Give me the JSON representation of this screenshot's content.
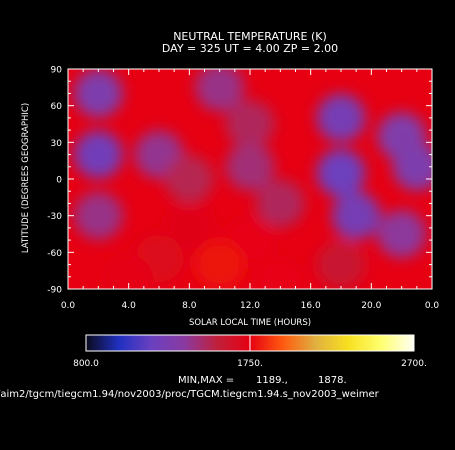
{
  "chart_data": {
    "type": "heatmap",
    "title": "NEUTRAL TEMPERATURE (K)",
    "subtitle": "DAY = 325   UT =   4.00   ZP =    2.00",
    "xlabel": "SOLAR LOCAL TIME (HOURS)",
    "ylabel": "LATITUDE (DEGREES GEOGRAPHIC)",
    "xlim": [
      0.0,
      24.0
    ],
    "ylim": [
      -90,
      90
    ],
    "x_ticks": [
      "0.0",
      "4.0",
      "8.0",
      "12.0",
      "16.0",
      "20.0",
      "0.0"
    ],
    "y_ticks": [
      "-90",
      "-60",
      "-30",
      "0",
      "30",
      "60",
      "90"
    ],
    "colorbar": {
      "min": 800.0,
      "max": 2700.0,
      "labels": [
        "800.0",
        "1750.",
        "2700."
      ],
      "colors": [
        "#0a0a1c",
        "#2030c0",
        "#6a40c0",
        "#8a3aa0",
        "#c0203c",
        "#e60012",
        "#ff5a10",
        "#e0b040",
        "#f8e020",
        "#ffff70",
        "#fffff4"
      ]
    },
    "field_samples": [
      {
        "lt": 2,
        "lat": 70,
        "value": 1300
      },
      {
        "lt": 10,
        "lat": 75,
        "value": 1420
      },
      {
        "lt": 12,
        "lat": 45,
        "value": 1500
      },
      {
        "lt": 18,
        "lat": 50,
        "value": 1250
      },
      {
        "lt": 22,
        "lat": 35,
        "value": 1310
      },
      {
        "lt": 2,
        "lat": 20,
        "value": 1230
      },
      {
        "lt": 6,
        "lat": 20,
        "value": 1400
      },
      {
        "lt": 8,
        "lat": 0,
        "value": 1520
      },
      {
        "lt": 12,
        "lat": 10,
        "value": 1450
      },
      {
        "lt": 18,
        "lat": 5,
        "value": 1200
      },
      {
        "lt": 23,
        "lat": 10,
        "value": 1300
      },
      {
        "lt": 2,
        "lat": -30,
        "value": 1420
      },
      {
        "lt": 8,
        "lat": -40,
        "value": 1720
      },
      {
        "lt": 12,
        "lat": -50,
        "value": 1760
      },
      {
        "lt": 14,
        "lat": -20,
        "value": 1500
      },
      {
        "lt": 19,
        "lat": -30,
        "value": 1250
      },
      {
        "lt": 22,
        "lat": -45,
        "value": 1380
      },
      {
        "lt": 6,
        "lat": -65,
        "value": 1700
      },
      {
        "lt": 10,
        "lat": -70,
        "value": 1800
      },
      {
        "lt": 18,
        "lat": -70,
        "value": 1600
      },
      {
        "lt": 4,
        "lat": -82,
        "value": 1750
      },
      {
        "lt": 14,
        "lat": -85,
        "value": 1760
      }
    ]
  },
  "footer": {
    "minmax_label": "MIN,MAX =",
    "min_value": "1189.,",
    "max_value": "1878.",
    "file_path": "/aim2/tgcm/tiegcm1.94/nov2003/proc/TGCM.tiegcm1.94.s_nov2003_weimer"
  }
}
